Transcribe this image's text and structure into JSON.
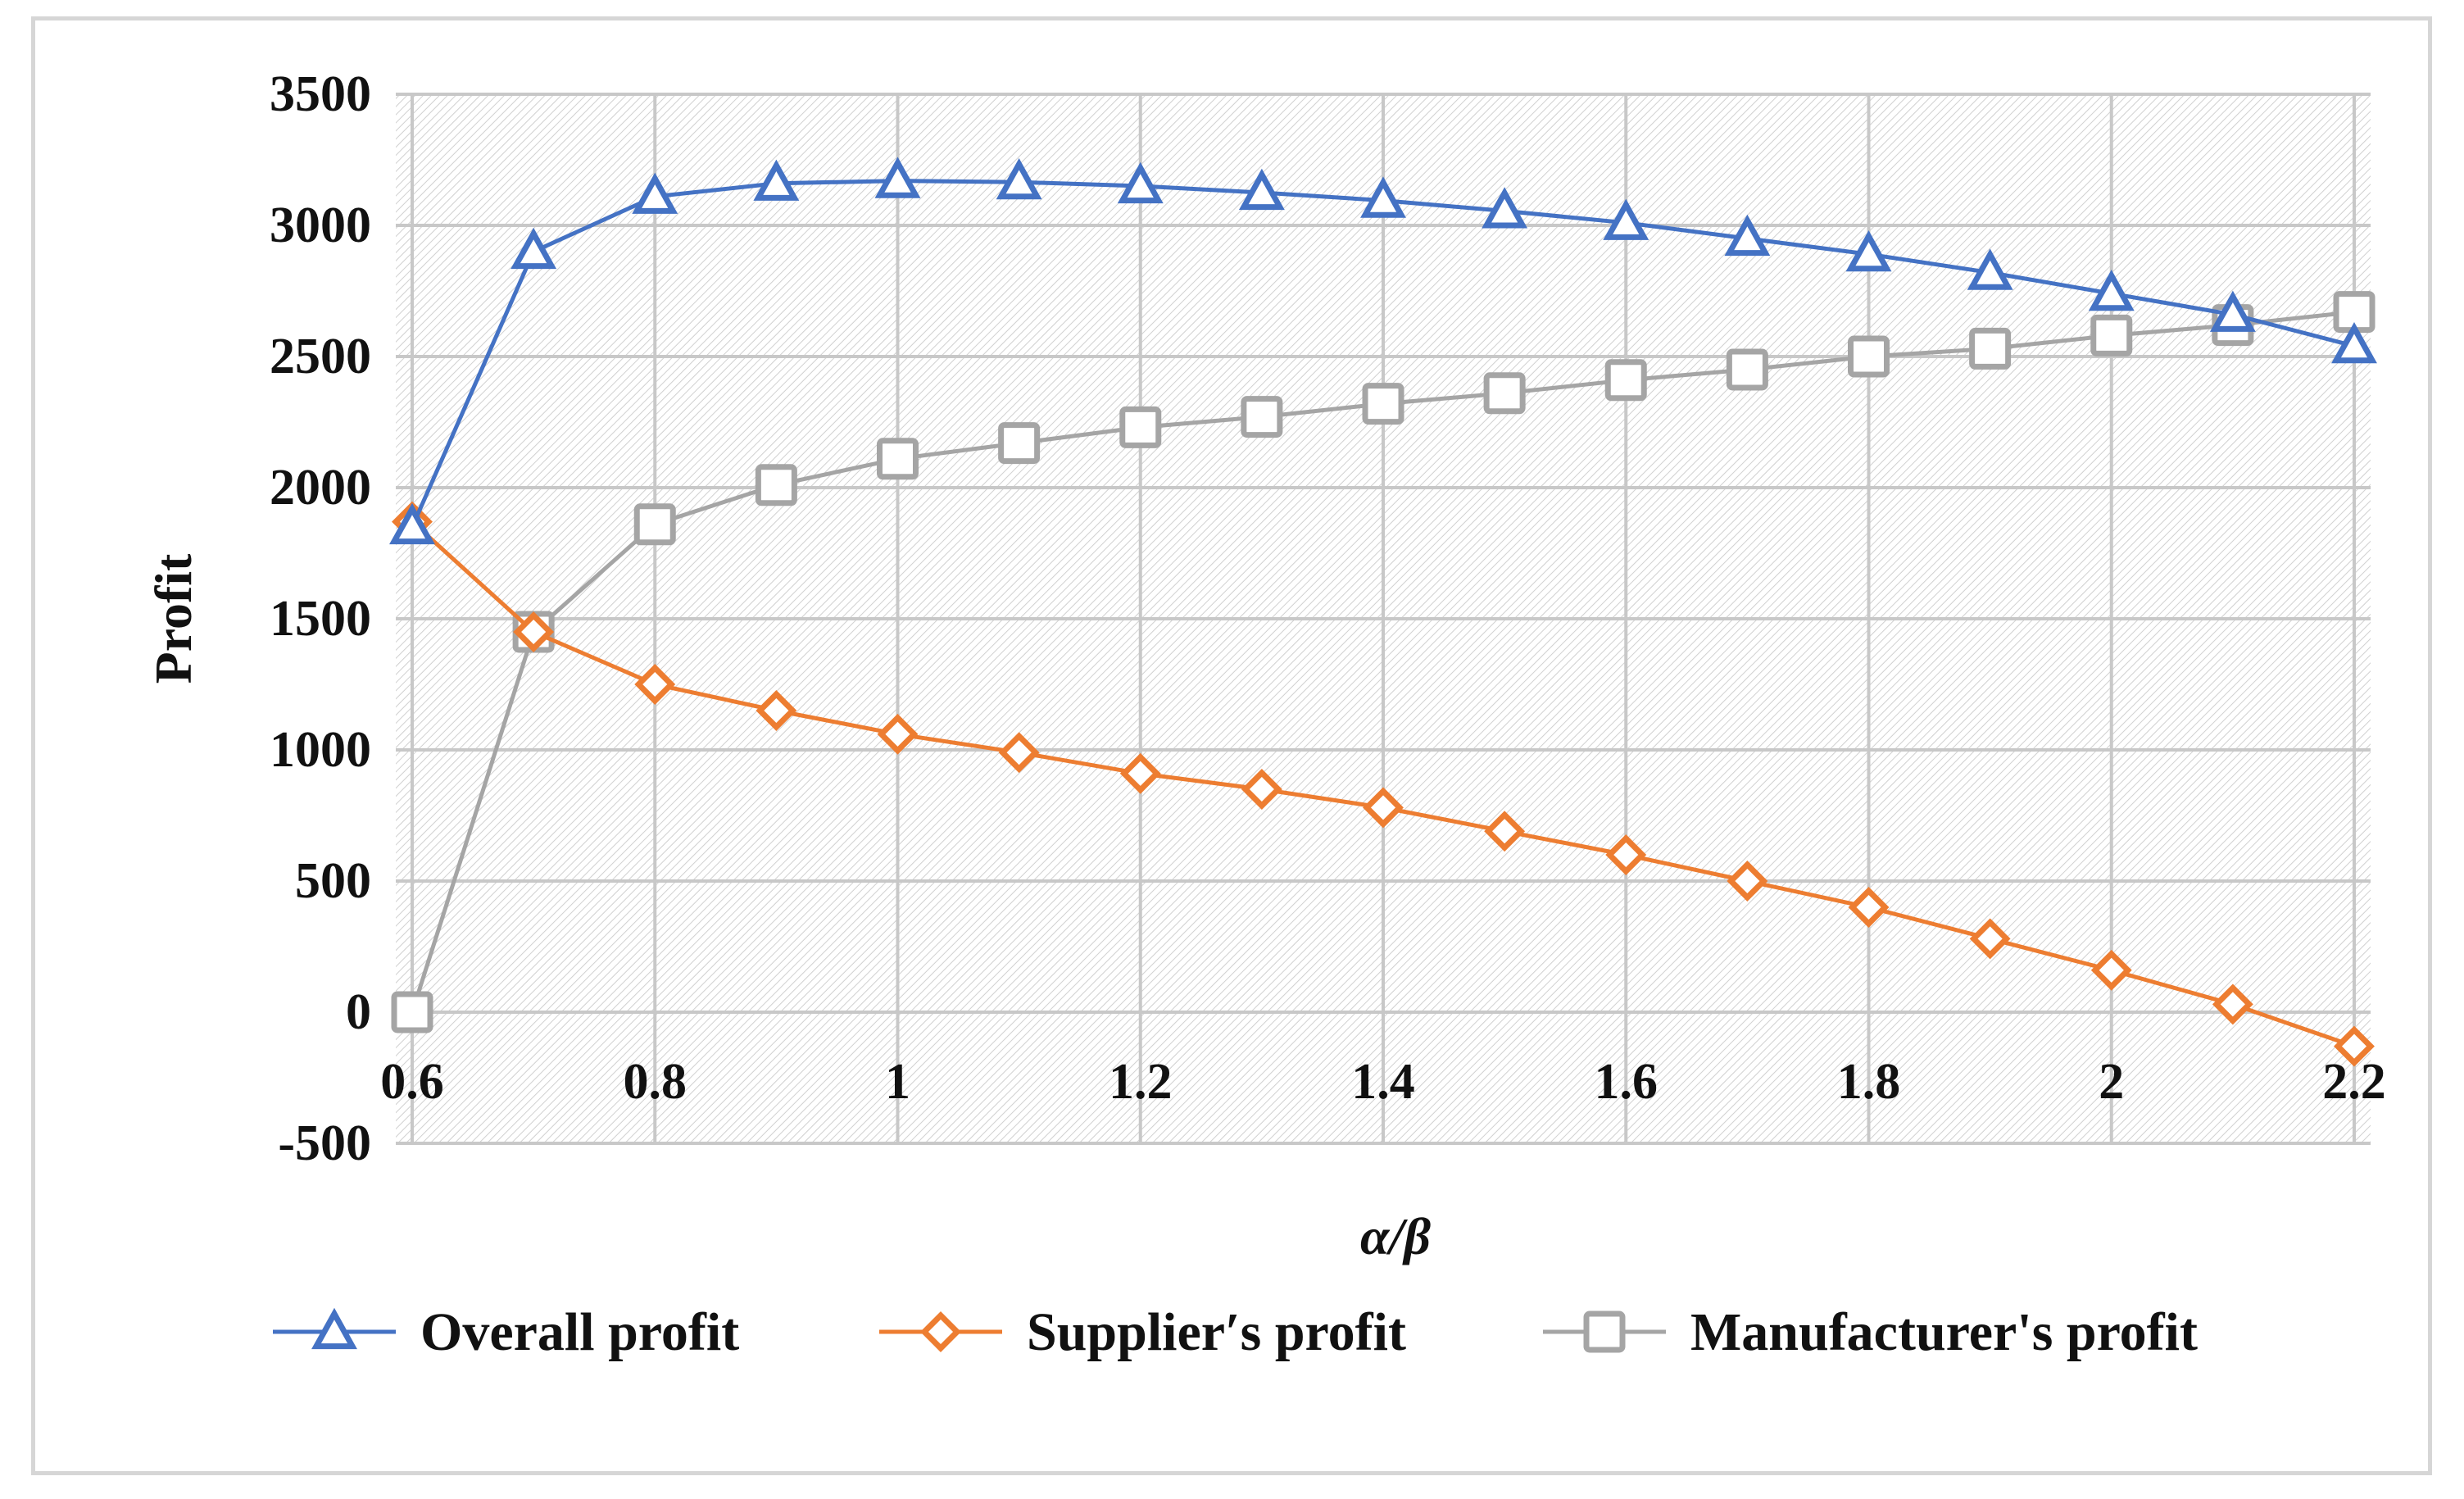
{
  "chart_data": {
    "type": "line",
    "title": "",
    "xlabel": "α/β",
    "ylabel": "Profit",
    "xlim": [
      0.6,
      2.2
    ],
    "ylim": [
      -500,
      3500
    ],
    "xticks": [
      "0.6",
      "0.8",
      "1",
      "1.2",
      "1.4",
      "1.6",
      "1.8",
      "2",
      "2.2"
    ],
    "yticks": [
      "3500",
      "3000",
      "2500",
      "2000",
      "1500",
      "1000",
      "500",
      "0",
      "-500"
    ],
    "x": [
      0.6,
      0.7,
      0.8,
      0.9,
      1.0,
      1.1,
      1.2,
      1.3,
      1.4,
      1.5,
      1.6,
      1.7,
      1.8,
      1.9,
      2.0,
      2.1,
      2.2
    ],
    "grid": true,
    "legend_position": "bottom",
    "series": [
      {
        "name": "Overall profit",
        "color": "#4472c4",
        "marker": "triangle",
        "values": [
          1850,
          2900,
          3110,
          3160,
          3170,
          3165,
          3150,
          3125,
          3095,
          3055,
          3010,
          2950,
          2890,
          2820,
          2740,
          2660,
          2540
        ]
      },
      {
        "name": "Supplier′s profit",
        "color": "#ed7d31",
        "marker": "diamond",
        "values": [
          1870,
          1450,
          1250,
          1150,
          1060,
          990,
          910,
          850,
          780,
          690,
          600,
          500,
          400,
          280,
          160,
          30,
          -130
        ]
      },
      {
        "name": "Manufacturer's profit",
        "color": "#a5a5a5",
        "marker": "square",
        "values": [
          0,
          1450,
          1860,
          2010,
          2110,
          2170,
          2230,
          2270,
          2320,
          2360,
          2410,
          2450,
          2500,
          2530,
          2580,
          2620,
          2670
        ]
      }
    ]
  }
}
